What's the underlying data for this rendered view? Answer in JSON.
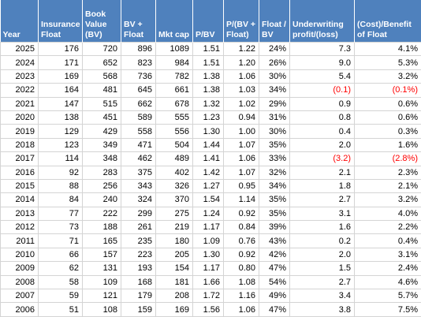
{
  "columns": [
    "Year",
    "Insurance Float",
    "Book Value (BV)",
    "BV + Float",
    "Mkt cap",
    "P/BV",
    "P/(BV + Float)",
    "Float / BV",
    "Underwriting profit/(loss)",
    "(Cost)/Benefit of Float"
  ],
  "header": {
    "col0": [
      "Year"
    ],
    "col1": [
      "Insurance",
      "Float"
    ],
    "col2": [
      "Book",
      "Value",
      "(BV)"
    ],
    "col3": [
      "BV +",
      "Float"
    ],
    "col4": [
      "Mkt cap"
    ],
    "col5": [
      "P/BV"
    ],
    "col6": [
      "P/(BV +",
      "Float)"
    ],
    "col7": [
      "Float /",
      "BV"
    ],
    "col8": [
      "Underwriting",
      "profit/(loss)"
    ],
    "col9": [
      "(Cost)/Benefit",
      "of Float"
    ]
  },
  "rows": [
    [
      "2025",
      "176",
      "720",
      "896",
      "1089",
      "1.51",
      "1.22",
      "24%",
      "7.3",
      "4.1%"
    ],
    [
      "2024",
      "171",
      "652",
      "823",
      "984",
      "1.51",
      "1.20",
      "26%",
      "9.0",
      "5.3%"
    ],
    [
      "2023",
      "169",
      "568",
      "736",
      "782",
      "1.38",
      "1.06",
      "30%",
      "5.4",
      "3.2%"
    ],
    [
      "2022",
      "164",
      "481",
      "645",
      "661",
      "1.38",
      "1.03",
      "34%",
      "(0.1)",
      "(0.1%)"
    ],
    [
      "2021",
      "147",
      "515",
      "662",
      "678",
      "1.32",
      "1.02",
      "29%",
      "0.9",
      "0.6%"
    ],
    [
      "2020",
      "138",
      "451",
      "589",
      "555",
      "1.23",
      "0.94",
      "31%",
      "0.8",
      "0.6%"
    ],
    [
      "2019",
      "129",
      "429",
      "558",
      "556",
      "1.30",
      "1.00",
      "30%",
      "0.4",
      "0.3%"
    ],
    [
      "2018",
      "123",
      "349",
      "471",
      "504",
      "1.44",
      "1.07",
      "35%",
      "2.0",
      "1.6%"
    ],
    [
      "2017",
      "114",
      "348",
      "462",
      "489",
      "1.41",
      "1.06",
      "33%",
      "(3.2)",
      "(2.8%)"
    ],
    [
      "2016",
      "92",
      "283",
      "375",
      "402",
      "1.42",
      "1.07",
      "32%",
      "2.1",
      "2.3%"
    ],
    [
      "2015",
      "88",
      "256",
      "343",
      "326",
      "1.27",
      "0.95",
      "34%",
      "1.8",
      "2.1%"
    ],
    [
      "2014",
      "84",
      "240",
      "324",
      "370",
      "1.54",
      "1.14",
      "35%",
      "2.7",
      "3.2%"
    ],
    [
      "2013",
      "77",
      "222",
      "299",
      "275",
      "1.24",
      "0.92",
      "35%",
      "3.1",
      "4.0%"
    ],
    [
      "2012",
      "73",
      "188",
      "261",
      "219",
      "1.17",
      "0.84",
      "39%",
      "1.6",
      "2.2%"
    ],
    [
      "2011",
      "71",
      "165",
      "235",
      "180",
      "1.09",
      "0.76",
      "43%",
      "0.2",
      "0.4%"
    ],
    [
      "2010",
      "66",
      "157",
      "223",
      "205",
      "1.30",
      "0.92",
      "42%",
      "2.0",
      "3.1%"
    ],
    [
      "2009",
      "62",
      "131",
      "193",
      "154",
      "1.17",
      "0.80",
      "47%",
      "1.5",
      "2.4%"
    ],
    [
      "2008",
      "58",
      "109",
      "168",
      "181",
      "1.66",
      "1.08",
      "54%",
      "2.7",
      "4.6%"
    ],
    [
      "2007",
      "59",
      "121",
      "179",
      "208",
      "1.72",
      "1.16",
      "49%",
      "3.4",
      "5.7%"
    ],
    [
      "2006",
      "51",
      "108",
      "159",
      "169",
      "1.56",
      "1.06",
      "47%",
      "3.8",
      "7.5%"
    ]
  ],
  "colors": {
    "header_bg": "#4f81bd",
    "header_text": "#ffffff",
    "negative_text": "#ff0000",
    "gridline": "#d4d4d4"
  }
}
